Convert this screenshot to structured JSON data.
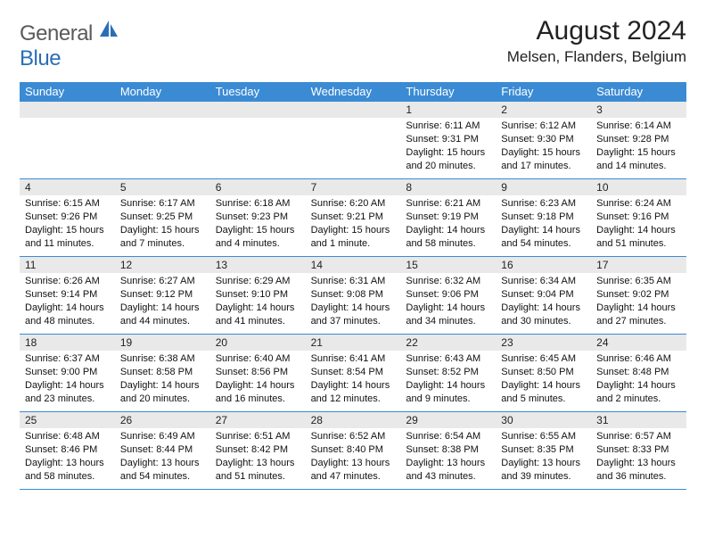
{
  "brand": {
    "part1": "General",
    "part2": "Blue"
  },
  "title": "August 2024",
  "location": "Melsen, Flanders, Belgium",
  "colors": {
    "header_bg": "#3b8bd4",
    "header_text": "#ffffff",
    "daynum_bg": "#e9e9e9",
    "week_divider": "#3b8bd4",
    "logo_gray": "#5a5a5a",
    "logo_blue": "#2a6fb5"
  },
  "day_headers": [
    "Sunday",
    "Monday",
    "Tuesday",
    "Wednesday",
    "Thursday",
    "Friday",
    "Saturday"
  ],
  "weeks": [
    [
      {
        "n": "",
        "sr": "",
        "ss": "",
        "dl": ""
      },
      {
        "n": "",
        "sr": "",
        "ss": "",
        "dl": ""
      },
      {
        "n": "",
        "sr": "",
        "ss": "",
        "dl": ""
      },
      {
        "n": "",
        "sr": "",
        "ss": "",
        "dl": ""
      },
      {
        "n": "1",
        "sr": "Sunrise: 6:11 AM",
        "ss": "Sunset: 9:31 PM",
        "dl": "Daylight: 15 hours and 20 minutes."
      },
      {
        "n": "2",
        "sr": "Sunrise: 6:12 AM",
        "ss": "Sunset: 9:30 PM",
        "dl": "Daylight: 15 hours and 17 minutes."
      },
      {
        "n": "3",
        "sr": "Sunrise: 6:14 AM",
        "ss": "Sunset: 9:28 PM",
        "dl": "Daylight: 15 hours and 14 minutes."
      }
    ],
    [
      {
        "n": "4",
        "sr": "Sunrise: 6:15 AM",
        "ss": "Sunset: 9:26 PM",
        "dl": "Daylight: 15 hours and 11 minutes."
      },
      {
        "n": "5",
        "sr": "Sunrise: 6:17 AM",
        "ss": "Sunset: 9:25 PM",
        "dl": "Daylight: 15 hours and 7 minutes."
      },
      {
        "n": "6",
        "sr": "Sunrise: 6:18 AM",
        "ss": "Sunset: 9:23 PM",
        "dl": "Daylight: 15 hours and 4 minutes."
      },
      {
        "n": "7",
        "sr": "Sunrise: 6:20 AM",
        "ss": "Sunset: 9:21 PM",
        "dl": "Daylight: 15 hours and 1 minute."
      },
      {
        "n": "8",
        "sr": "Sunrise: 6:21 AM",
        "ss": "Sunset: 9:19 PM",
        "dl": "Daylight: 14 hours and 58 minutes."
      },
      {
        "n": "9",
        "sr": "Sunrise: 6:23 AM",
        "ss": "Sunset: 9:18 PM",
        "dl": "Daylight: 14 hours and 54 minutes."
      },
      {
        "n": "10",
        "sr": "Sunrise: 6:24 AM",
        "ss": "Sunset: 9:16 PM",
        "dl": "Daylight: 14 hours and 51 minutes."
      }
    ],
    [
      {
        "n": "11",
        "sr": "Sunrise: 6:26 AM",
        "ss": "Sunset: 9:14 PM",
        "dl": "Daylight: 14 hours and 48 minutes."
      },
      {
        "n": "12",
        "sr": "Sunrise: 6:27 AM",
        "ss": "Sunset: 9:12 PM",
        "dl": "Daylight: 14 hours and 44 minutes."
      },
      {
        "n": "13",
        "sr": "Sunrise: 6:29 AM",
        "ss": "Sunset: 9:10 PM",
        "dl": "Daylight: 14 hours and 41 minutes."
      },
      {
        "n": "14",
        "sr": "Sunrise: 6:31 AM",
        "ss": "Sunset: 9:08 PM",
        "dl": "Daylight: 14 hours and 37 minutes."
      },
      {
        "n": "15",
        "sr": "Sunrise: 6:32 AM",
        "ss": "Sunset: 9:06 PM",
        "dl": "Daylight: 14 hours and 34 minutes."
      },
      {
        "n": "16",
        "sr": "Sunrise: 6:34 AM",
        "ss": "Sunset: 9:04 PM",
        "dl": "Daylight: 14 hours and 30 minutes."
      },
      {
        "n": "17",
        "sr": "Sunrise: 6:35 AM",
        "ss": "Sunset: 9:02 PM",
        "dl": "Daylight: 14 hours and 27 minutes."
      }
    ],
    [
      {
        "n": "18",
        "sr": "Sunrise: 6:37 AM",
        "ss": "Sunset: 9:00 PM",
        "dl": "Daylight: 14 hours and 23 minutes."
      },
      {
        "n": "19",
        "sr": "Sunrise: 6:38 AM",
        "ss": "Sunset: 8:58 PM",
        "dl": "Daylight: 14 hours and 20 minutes."
      },
      {
        "n": "20",
        "sr": "Sunrise: 6:40 AM",
        "ss": "Sunset: 8:56 PM",
        "dl": "Daylight: 14 hours and 16 minutes."
      },
      {
        "n": "21",
        "sr": "Sunrise: 6:41 AM",
        "ss": "Sunset: 8:54 PM",
        "dl": "Daylight: 14 hours and 12 minutes."
      },
      {
        "n": "22",
        "sr": "Sunrise: 6:43 AM",
        "ss": "Sunset: 8:52 PM",
        "dl": "Daylight: 14 hours and 9 minutes."
      },
      {
        "n": "23",
        "sr": "Sunrise: 6:45 AM",
        "ss": "Sunset: 8:50 PM",
        "dl": "Daylight: 14 hours and 5 minutes."
      },
      {
        "n": "24",
        "sr": "Sunrise: 6:46 AM",
        "ss": "Sunset: 8:48 PM",
        "dl": "Daylight: 14 hours and 2 minutes."
      }
    ],
    [
      {
        "n": "25",
        "sr": "Sunrise: 6:48 AM",
        "ss": "Sunset: 8:46 PM",
        "dl": "Daylight: 13 hours and 58 minutes."
      },
      {
        "n": "26",
        "sr": "Sunrise: 6:49 AM",
        "ss": "Sunset: 8:44 PM",
        "dl": "Daylight: 13 hours and 54 minutes."
      },
      {
        "n": "27",
        "sr": "Sunrise: 6:51 AM",
        "ss": "Sunset: 8:42 PM",
        "dl": "Daylight: 13 hours and 51 minutes."
      },
      {
        "n": "28",
        "sr": "Sunrise: 6:52 AM",
        "ss": "Sunset: 8:40 PM",
        "dl": "Daylight: 13 hours and 47 minutes."
      },
      {
        "n": "29",
        "sr": "Sunrise: 6:54 AM",
        "ss": "Sunset: 8:38 PM",
        "dl": "Daylight: 13 hours and 43 minutes."
      },
      {
        "n": "30",
        "sr": "Sunrise: 6:55 AM",
        "ss": "Sunset: 8:35 PM",
        "dl": "Daylight: 13 hours and 39 minutes."
      },
      {
        "n": "31",
        "sr": "Sunrise: 6:57 AM",
        "ss": "Sunset: 8:33 PM",
        "dl": "Daylight: 13 hours and 36 minutes."
      }
    ]
  ]
}
